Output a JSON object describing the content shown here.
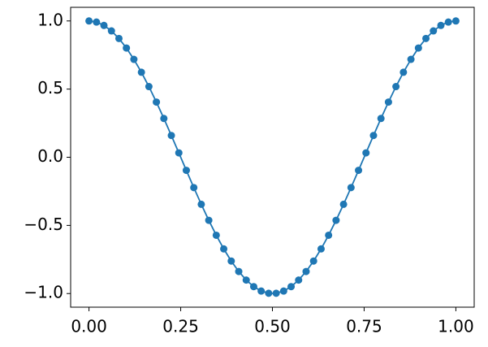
{
  "chart_data": {
    "type": "line",
    "x": [
      0,
      0.0204,
      0.0408,
      0.0612,
      0.0816,
      0.102,
      0.1224,
      0.1429,
      0.1633,
      0.1837,
      0.2041,
      0.2245,
      0.2449,
      0.2653,
      0.2857,
      0.3061,
      0.3265,
      0.3469,
      0.3673,
      0.3878,
      0.4082,
      0.4286,
      0.449,
      0.4694,
      0.4898,
      0.5102,
      0.5306,
      0.551,
      0.5714,
      0.5918,
      0.6122,
      0.6327,
      0.6531,
      0.6735,
      0.6939,
      0.7143,
      0.7347,
      0.7551,
      0.7755,
      0.7959,
      0.8163,
      0.8367,
      0.8571,
      0.8776,
      0.898,
      0.9184,
      0.9388,
      0.9592,
      0.9796,
      1
    ],
    "series": [
      {
        "color": "#1f77b4",
        "marker": true,
        "values": [
          1,
          0.9918,
          0.9673,
          0.9269,
          0.8713,
          0.8014,
          0.7181,
          0.6235,
          0.5185,
          0.4048,
          0.2845,
          0.1596,
          0.0321,
          -0.096,
          -0.2225,
          -0.3454,
          -0.4625,
          -0.5721,
          -0.6723,
          -0.7615,
          -0.8382,
          -0.901,
          -0.9491,
          -0.9816,
          -0.9979,
          -0.9979,
          -0.9816,
          -0.9491,
          -0.901,
          -0.8382,
          -0.7615,
          -0.6723,
          -0.5721,
          -0.4625,
          -0.3454,
          -0.2225,
          -0.096,
          0.0321,
          0.1596,
          0.2845,
          0.4048,
          0.5185,
          0.6235,
          0.7181,
          0.8014,
          0.8713,
          0.9269,
          0.9673,
          0.9918,
          1
        ]
      }
    ],
    "xlim": [
      -0.05,
      1.05
    ],
    "ylim": [
      -1.1,
      1.1
    ],
    "xticks": [
      {
        "value": 0,
        "label": "0.00"
      },
      {
        "value": 0.25,
        "label": "0.25"
      },
      {
        "value": 0.5,
        "label": "0.50"
      },
      {
        "value": 0.75,
        "label": "0.75"
      },
      {
        "value": 1,
        "label": "1.00"
      }
    ],
    "yticks": [
      {
        "value": -1,
        "label": "−1.0"
      },
      {
        "value": -0.5,
        "label": "−0.5"
      },
      {
        "value": 0,
        "label": "0.0"
      },
      {
        "value": 0.5,
        "label": "0.5"
      },
      {
        "value": 1,
        "label": "1.0"
      }
    ],
    "grid": false
  }
}
